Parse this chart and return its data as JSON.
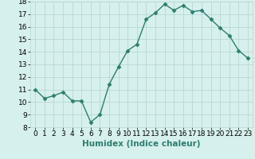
{
  "x": [
    0,
    1,
    2,
    3,
    4,
    5,
    6,
    7,
    8,
    9,
    10,
    11,
    12,
    13,
    14,
    15,
    16,
    17,
    18,
    19,
    20,
    21,
    22,
    23
  ],
  "y": [
    11.0,
    10.3,
    10.5,
    10.8,
    10.1,
    10.1,
    8.4,
    9.0,
    11.4,
    12.8,
    14.1,
    14.6,
    16.6,
    17.1,
    17.8,
    17.3,
    17.7,
    17.2,
    17.3,
    16.6,
    15.9,
    15.3,
    14.1,
    13.5
  ],
  "line_color": "#2e7d6e",
  "marker": "D",
  "marker_size": 2.5,
  "bg_color": "#d6f0ee",
  "grid_color": "#b8d8d4",
  "xlabel": "Humidex (Indice chaleur)",
  "xlim": [
    -0.5,
    23.5
  ],
  "ylim": [
    8,
    18
  ],
  "yticks": [
    8,
    9,
    10,
    11,
    12,
    13,
    14,
    15,
    16,
    17,
    18
  ],
  "xticks": [
    0,
    1,
    2,
    3,
    4,
    5,
    6,
    7,
    8,
    9,
    10,
    11,
    12,
    13,
    14,
    15,
    16,
    17,
    18,
    19,
    20,
    21,
    22,
    23
  ],
  "xlabel_fontsize": 7.5,
  "tick_fontsize": 6.5,
  "line_width": 1.0
}
